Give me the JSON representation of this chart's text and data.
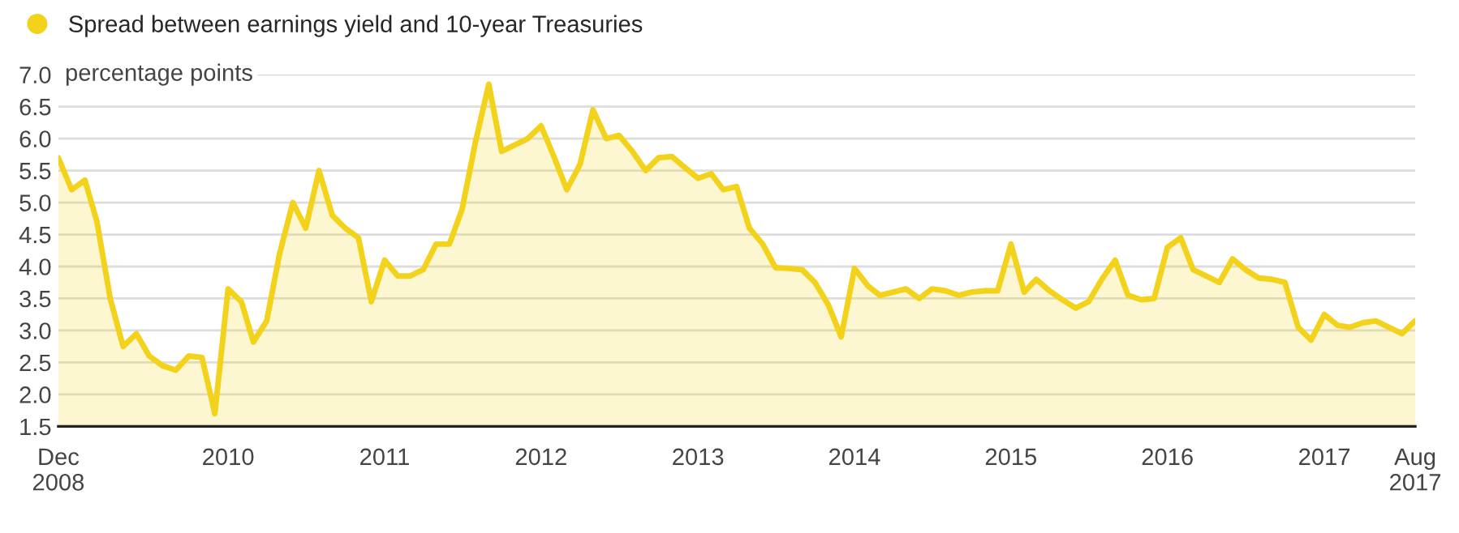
{
  "chart_data": {
    "type": "area",
    "series": [
      {
        "name": "Spread between earnings yield and 10-year Treasuries",
        "color": "#f2d21b",
        "x": [
          "2008-12",
          "2009-01",
          "2009-02",
          "2009-03",
          "2009-04",
          "2009-05",
          "2009-06",
          "2009-07",
          "2009-08",
          "2009-09",
          "2009-10",
          "2009-11",
          "2009-12",
          "2010-01",
          "2010-02",
          "2010-03",
          "2010-04",
          "2010-05",
          "2010-06",
          "2010-07",
          "2010-08",
          "2010-09",
          "2010-10",
          "2010-11",
          "2010-12",
          "2011-01",
          "2011-02",
          "2011-03",
          "2011-04",
          "2011-05",
          "2011-06",
          "2011-07",
          "2011-08",
          "2011-09",
          "2011-10",
          "2011-11",
          "2011-12",
          "2012-01",
          "2012-02",
          "2012-03",
          "2012-04",
          "2012-05",
          "2012-06",
          "2012-07",
          "2012-08",
          "2012-09",
          "2012-10",
          "2012-11",
          "2012-12",
          "2013-01",
          "2013-02",
          "2013-03",
          "2013-04",
          "2013-05",
          "2013-06",
          "2013-07",
          "2013-08",
          "2013-09",
          "2013-10",
          "2013-11",
          "2013-12",
          "2014-01",
          "2014-02",
          "2014-03",
          "2014-04",
          "2014-05",
          "2014-06",
          "2014-07",
          "2014-08",
          "2014-09",
          "2014-10",
          "2014-11",
          "2014-12",
          "2015-01",
          "2015-02",
          "2015-03",
          "2015-04",
          "2015-05",
          "2015-06",
          "2015-07",
          "2015-08",
          "2015-09",
          "2015-10",
          "2015-11",
          "2015-12",
          "2016-01",
          "2016-02",
          "2016-03",
          "2016-04",
          "2016-05",
          "2016-06",
          "2016-07",
          "2016-08",
          "2016-09",
          "2016-10",
          "2016-11",
          "2016-12",
          "2017-01",
          "2017-02",
          "2017-03",
          "2017-04",
          "2017-05",
          "2017-06",
          "2017-07",
          "2017-08"
        ],
        "values": [
          5.7,
          5.2,
          5.35,
          4.7,
          3.5,
          2.75,
          2.95,
          2.6,
          2.45,
          2.38,
          2.6,
          2.58,
          1.7,
          3.65,
          3.45,
          2.82,
          3.15,
          4.2,
          5.0,
          4.6,
          5.5,
          4.8,
          4.6,
          4.45,
          3.45,
          4.1,
          3.85,
          3.85,
          3.95,
          4.35,
          4.35,
          4.9,
          5.95,
          6.85,
          5.8,
          5.9,
          6.0,
          6.2,
          5.7,
          5.2,
          5.6,
          6.45,
          6.0,
          6.05,
          5.8,
          5.5,
          5.7,
          5.72,
          5.55,
          5.38,
          5.45,
          5.2,
          5.25,
          4.6,
          4.35,
          3.98,
          3.97,
          3.95,
          3.75,
          3.4,
          2.9,
          3.97,
          3.7,
          3.55,
          3.6,
          3.65,
          3.5,
          3.65,
          3.62,
          3.55,
          3.6,
          3.62,
          3.62,
          4.35,
          3.6,
          3.8,
          3.62,
          3.48,
          3.35,
          3.45,
          3.8,
          4.1,
          3.55,
          3.48,
          3.5,
          4.3,
          4.45,
          3.95,
          3.85,
          3.75,
          4.12,
          3.95,
          3.82,
          3.8,
          3.75,
          3.05,
          2.85,
          3.25,
          3.08,
          3.05,
          3.12,
          3.15,
          3.05,
          2.95,
          3.15
        ]
      }
    ],
    "ylabel": "percentage points",
    "xlim": [
      "2008-12",
      "2017-08"
    ],
    "xticks": [
      {
        "value": "2008-12",
        "label": "Dec\n2008"
      },
      {
        "value": "2010-01",
        "label": "2010"
      },
      {
        "value": "2011-01",
        "label": "2011"
      },
      {
        "value": "2012-01",
        "label": "2012"
      },
      {
        "value": "2013-01",
        "label": "2013"
      },
      {
        "value": "2014-01",
        "label": "2014"
      },
      {
        "value": "2015-01",
        "label": "2015"
      },
      {
        "value": "2016-01",
        "label": "2016"
      },
      {
        "value": "2017-01",
        "label": "2017"
      },
      {
        "value": "2017-08",
        "label": "Aug\n2017"
      }
    ],
    "ylim": [
      1.5,
      7.0
    ],
    "yticks": [
      {
        "value": 1.5,
        "label": "1.5"
      },
      {
        "value": 2.0,
        "label": "2.0"
      },
      {
        "value": 2.5,
        "label": "2.5"
      },
      {
        "value": 3.0,
        "label": "3.0"
      },
      {
        "value": 3.5,
        "label": "3.5"
      },
      {
        "value": 4.0,
        "label": "4.0"
      },
      {
        "value": 4.5,
        "label": "4.5"
      },
      {
        "value": 5.0,
        "label": "5.0"
      },
      {
        "value": 5.5,
        "label": "5.5"
      },
      {
        "value": 6.0,
        "label": "6.0"
      },
      {
        "value": 6.5,
        "label": "6.5"
      },
      {
        "value": 7.0,
        "label": "7.0"
      }
    ],
    "grid": "y",
    "legend": "top left"
  }
}
